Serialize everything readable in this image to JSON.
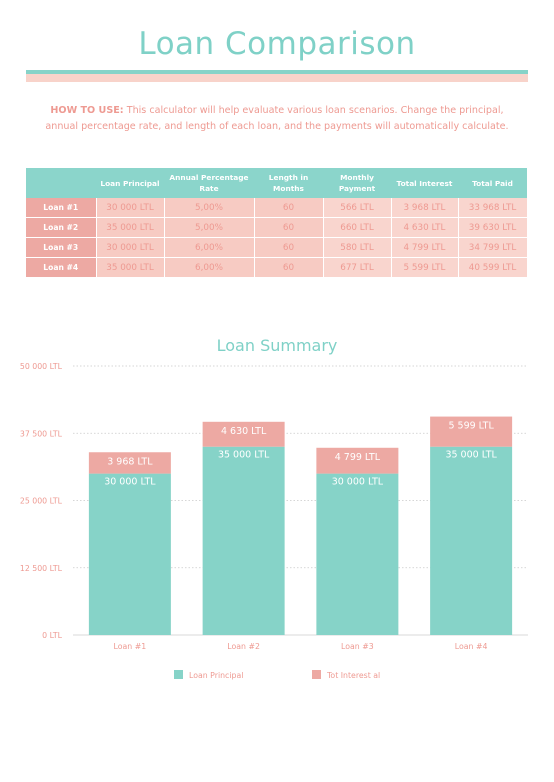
{
  "header": {
    "title": "Loan Comparison",
    "howto_lead": "HOW TO USE:",
    "howto_text": " This calculator will help evaluate various loan scenarios. Change the principal, annual percentage rate, and length of each loan, and the payments will automatically calculate."
  },
  "table": {
    "columns": [
      "",
      "Loan Principal",
      "Annual Percentage Rate",
      "Length in Months",
      "Monthly Payment",
      "Total Interest",
      "Total Paid"
    ],
    "rows": [
      [
        "Loan #1",
        "30 000 LTL",
        "5,00%",
        "60",
        "566 LTL",
        "3 968 LTL",
        "33 968 LTL"
      ],
      [
        "Loan #2",
        "35 000 LTL",
        "5,00%",
        "60",
        "660 LTL",
        "4 630 LTL",
        "39 630 LTL"
      ],
      [
        "Loan #3",
        "30 000 LTL",
        "6,00%",
        "60",
        "580 LTL",
        "4 799 LTL",
        "34 799 LTL"
      ],
      [
        "Loan #4",
        "35 000 LTL",
        "6,00%",
        "60",
        "677 LTL",
        "5 599 LTL",
        "40 599 LTL"
      ]
    ]
  },
  "colors": {
    "teal": "#86d3c8",
    "pink": "#eda9a3",
    "text_pink": "#ee9a92"
  },
  "chart_data": {
    "type": "bar",
    "stacked": true,
    "title": "Loan Summary",
    "categories": [
      "Loan #1",
      "Loan #2",
      "Loan #3",
      "Loan #4"
    ],
    "series": [
      {
        "name": "Loan Principal",
        "values": [
          30000,
          35000,
          30000,
          35000
        ],
        "labels": [
          "30 000 LTL",
          "35 000 LTL",
          "30 000 LTL",
          "35 000 LTL"
        ],
        "color": "#86d3c8"
      },
      {
        "name": "Tot Interest al",
        "values": [
          3968,
          4630,
          4799,
          5599
        ],
        "labels": [
          "3 968 LTL",
          "4 630 LTL",
          "4 799 LTL",
          "5 599 LTL"
        ],
        "color": "#eda9a3"
      }
    ],
    "ylim": [
      0,
      50000
    ],
    "yticks": [
      0,
      12500,
      25000,
      37500,
      50000
    ],
    "ytick_labels": [
      "0 LTL",
      "12 500 LTL",
      "25 000 LTL",
      "37 500 LTL",
      "50 000 LTL"
    ],
    "grid": true,
    "legend": "bottom"
  }
}
